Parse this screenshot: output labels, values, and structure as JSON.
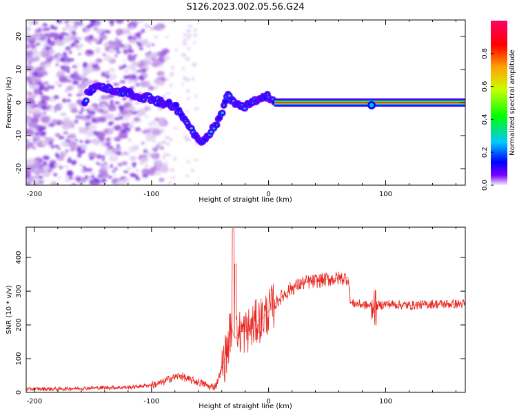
{
  "title": "S126.2023.002.05.56.G24",
  "chart_data": [
    {
      "type": "heatmap",
      "xlabel": "Height of straight line (km)",
      "ylabel": "Frequency (Hz)",
      "xlim": [
        -207,
        168
      ],
      "ylim": [
        -25,
        25
      ],
      "xticks": [
        -200,
        -100,
        0,
        100
      ],
      "yticks": [
        -20,
        -10,
        0,
        10,
        20
      ],
      "colorbar": {
        "label": "Normalized spectral amplitude",
        "range": [
          0,
          1
        ],
        "ticks": [
          "0.0",
          "0.2",
          "0.4",
          "0.6",
          "0.8"
        ],
        "tick_values": [
          0,
          0.2,
          0.4,
          0.6,
          0.8
        ],
        "colors": [
          "#f4f0f8",
          "#7a00ff",
          "#0000ff",
          "#00c8ff",
          "#00ff00",
          "#c8ff00",
          "#ffa000",
          "#ff0000",
          "#ff0066"
        ]
      },
      "peak_frequency_track": [
        {
          "x": -155,
          "y": 3
        },
        {
          "x": -145,
          "y": 5
        },
        {
          "x": -135,
          "y": 4
        },
        {
          "x": -120,
          "y": 3
        },
        {
          "x": -110,
          "y": 2
        },
        {
          "x": -100,
          "y": 1
        },
        {
          "x": -90,
          "y": 0
        },
        {
          "x": -80,
          "y": -1
        },
        {
          "x": -72,
          "y": -5
        },
        {
          "x": -65,
          "y": -9
        },
        {
          "x": -58,
          "y": -12
        },
        {
          "x": -50,
          "y": -9
        },
        {
          "x": -42,
          "y": -5
        },
        {
          "x": -35,
          "y": 2
        },
        {
          "x": -28,
          "y": 0
        },
        {
          "x": -20,
          "y": -1
        },
        {
          "x": -10,
          "y": 1
        },
        {
          "x": 0,
          "y": 2
        },
        {
          "x": 5,
          "y": 0
        },
        {
          "x": 50,
          "y": 0
        },
        {
          "x": 85,
          "y": 0
        },
        {
          "x": 90,
          "y": -1
        },
        {
          "x": 100,
          "y": 0
        },
        {
          "x": 168,
          "y": 0
        }
      ],
      "grid": false
    },
    {
      "type": "line",
      "xlabel": "Height of straight line (km)",
      "ylabel": "SNR (10 * v/v)",
      "xlim": [
        -207,
        168
      ],
      "ylim": [
        0,
        490
      ],
      "xticks": [
        -200,
        -100,
        0,
        100
      ],
      "yticks": [
        0,
        100,
        200,
        300,
        400
      ],
      "series": [
        {
          "color": "#e8231e",
          "x": [
            -207,
            -180,
            -160,
            -140,
            -120,
            -110,
            -100,
            -95,
            -90,
            -85,
            -80,
            -75,
            -70,
            -65,
            -60,
            -55,
            -50,
            -45,
            -40,
            -35,
            -32,
            -30,
            -28,
            -25,
            -20,
            -15,
            -10,
            -5,
            0,
            10,
            20,
            30,
            40,
            50,
            60,
            68,
            70,
            80,
            90,
            100,
            120,
            140,
            168
          ],
          "y": [
            10,
            10,
            12,
            14,
            15,
            18,
            22,
            25,
            30,
            40,
            45,
            50,
            40,
            35,
            30,
            25,
            15,
            20,
            70,
            130,
            200,
            170,
            160,
            180,
            180,
            190,
            210,
            220,
            240,
            280,
            310,
            325,
            330,
            335,
            338,
            340,
            265,
            260,
            255,
            262,
            258,
            262,
            262
          ]
        }
      ],
      "grid": false
    }
  ]
}
